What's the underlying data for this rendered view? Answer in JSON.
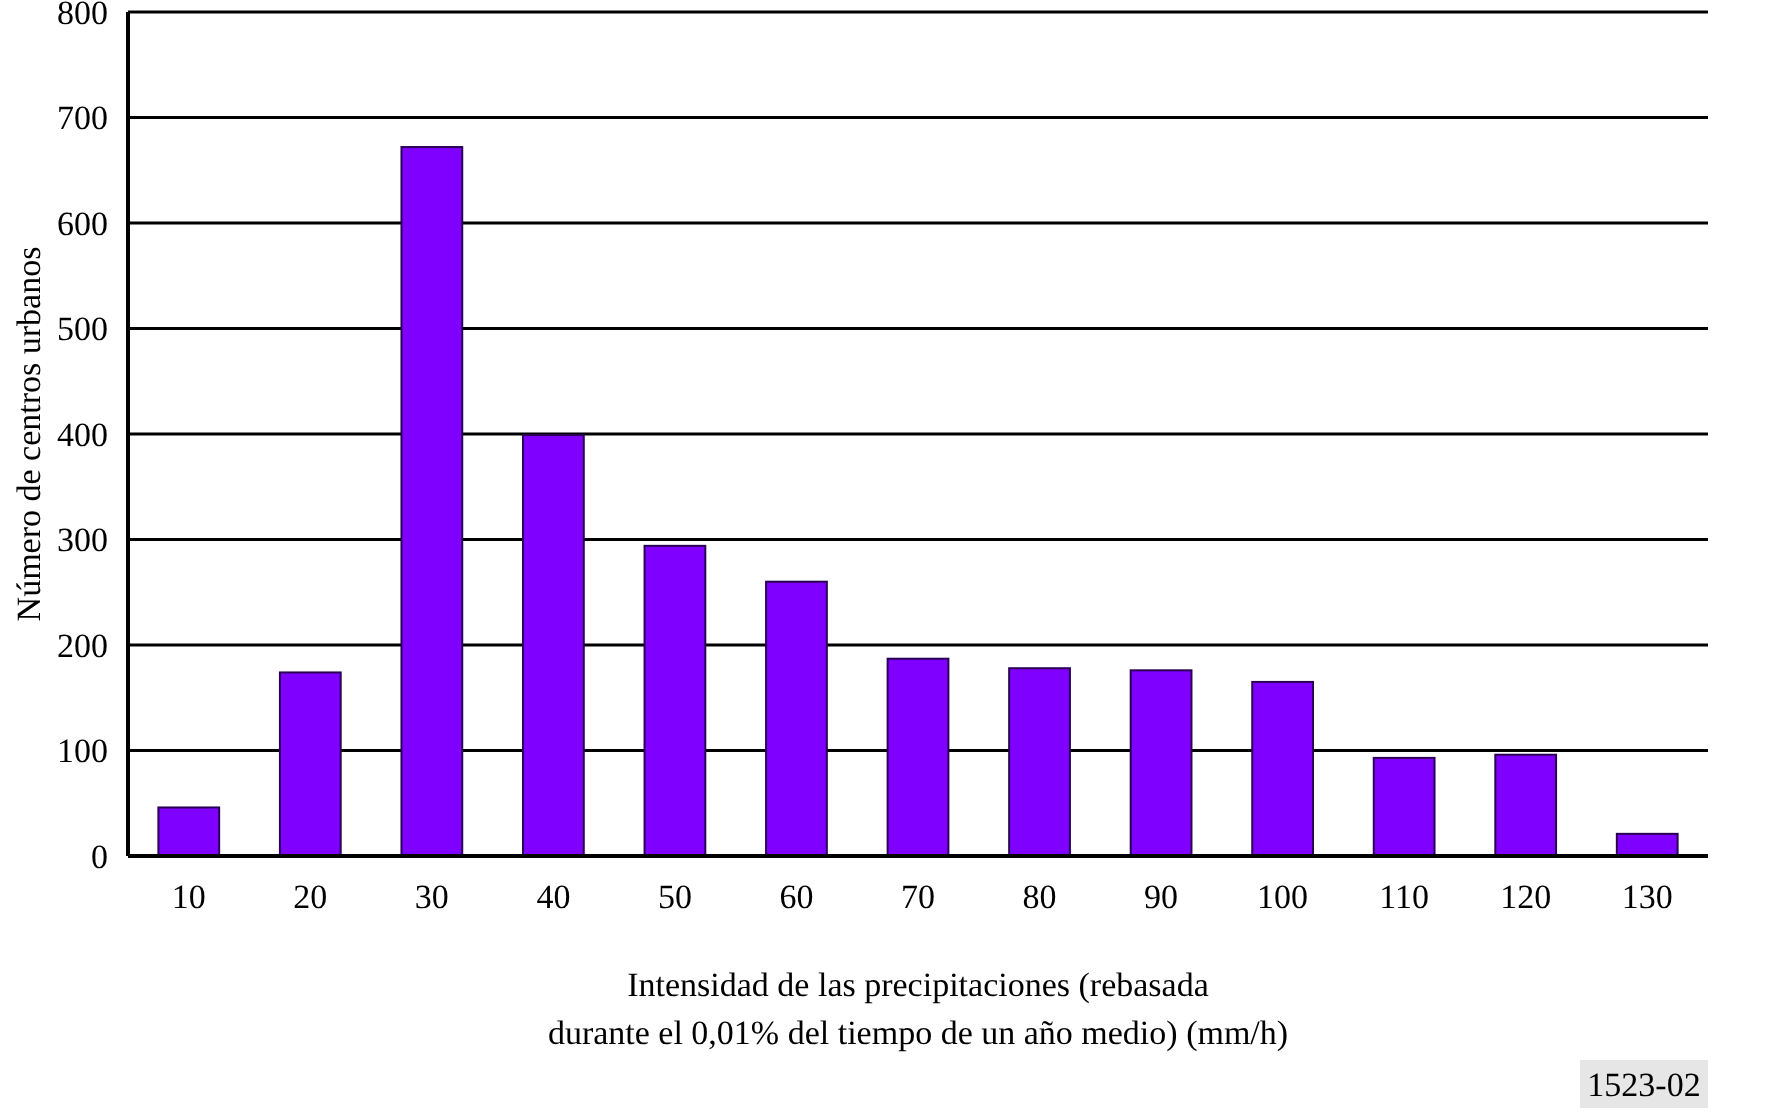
{
  "chart_data": {
    "type": "bar",
    "categories": [
      "10",
      "20",
      "30",
      "40",
      "50",
      "60",
      "70",
      "80",
      "90",
      "100",
      "110",
      "120",
      "130"
    ],
    "values": [
      46,
      174,
      672,
      399,
      294,
      260,
      187,
      178,
      176,
      165,
      93,
      96,
      21
    ],
    "color": "#8000ff",
    "ylim": [
      0,
      800
    ],
    "yticks": [
      0,
      100,
      200,
      300,
      400,
      500,
      600,
      700,
      800
    ],
    "grid": "y",
    "xlabel": "Intensidad de las precipitaciones (rebasada\ndurante el 0,01% del tiempo de un año medio) (mm/h)",
    "ylabel": "Número de centros urbanos",
    "annotations": [
      "1523-02"
    ]
  }
}
